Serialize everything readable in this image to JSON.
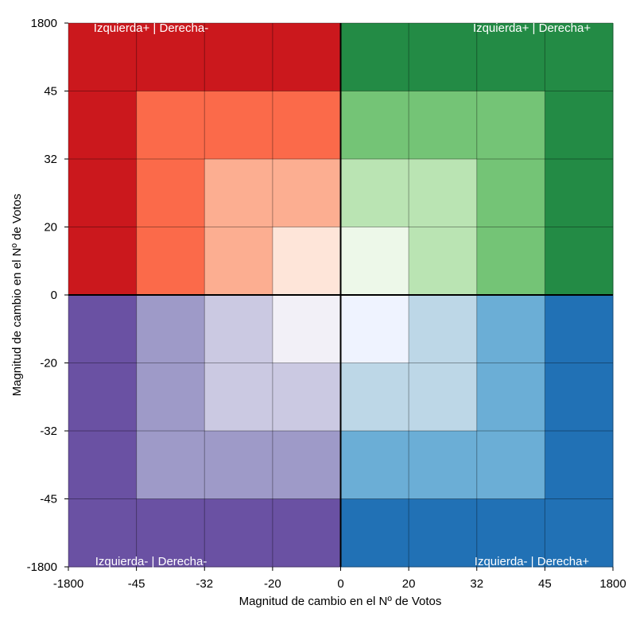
{
  "chart_data": {
    "type": "heatmap",
    "xlabel": "Magnitud de cambio en el Nº de Votos",
    "ylabel": "Magnitud de cambio en el Nº de Votos",
    "x_ticks": [
      "-1800",
      "-45",
      "-32",
      "-20",
      "0",
      "20",
      "32",
      "45",
      "1800"
    ],
    "y_ticks": [
      "1800",
      "45",
      "32",
      "20",
      "0",
      "-20",
      "-32",
      "-45",
      "-1800"
    ],
    "grid": true,
    "quadrant_labels": {
      "top_left": "Izquierda+ | Derecha-",
      "top_right": "Izquierda+ | Derecha+",
      "bottom_left": "Izquierda- | Derecha-",
      "bottom_right": "Izquierda- | Derecha+"
    },
    "cell_colors": [
      [
        "#cb181d",
        "#cb181d",
        "#cb181d",
        "#cb181d",
        "#238b45",
        "#238b45",
        "#238b45",
        "#238b45"
      ],
      [
        "#cb181d",
        "#fb6a4a",
        "#fb6a4a",
        "#fb6a4a",
        "#74c476",
        "#74c476",
        "#74c476",
        "#238b45"
      ],
      [
        "#cb181d",
        "#fb6a4a",
        "#fcae91",
        "#fcae91",
        "#bae4b3",
        "#bae4b3",
        "#74c476",
        "#238b45"
      ],
      [
        "#cb181d",
        "#fb6a4a",
        "#fcae91",
        "#fee5d9",
        "#edf8e9",
        "#bae4b3",
        "#74c476",
        "#238b45"
      ],
      [
        "#6a51a3",
        "#9e9ac8",
        "#cbc9e2",
        "#f2f0f7",
        "#eff3ff",
        "#bdd7e7",
        "#6baed6",
        "#2171b5"
      ],
      [
        "#6a51a3",
        "#9e9ac8",
        "#cbc9e2",
        "#cbc9e2",
        "#bdd7e7",
        "#bdd7e7",
        "#6baed6",
        "#2171b5"
      ],
      [
        "#6a51a3",
        "#9e9ac8",
        "#9e9ac8",
        "#9e9ac8",
        "#6baed6",
        "#6baed6",
        "#6baed6",
        "#2171b5"
      ],
      [
        "#6a51a3",
        "#6a51a3",
        "#6a51a3",
        "#6a51a3",
        "#2171b5",
        "#2171b5",
        "#2171b5",
        "#2171b5"
      ]
    ]
  }
}
